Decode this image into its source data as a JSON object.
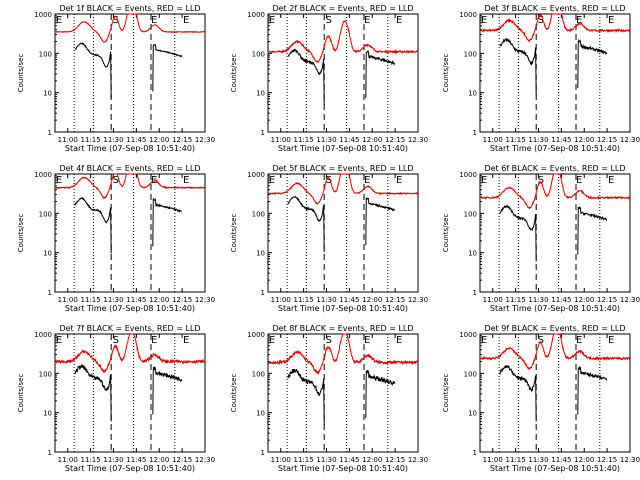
{
  "chart_data": {
    "type": "line",
    "xlabel": "Start Time (07-Sep-08 10:51:40)",
    "ylabel": "Counts/sec",
    "y_scale": "log",
    "ylim": [
      1,
      1000
    ],
    "x_ticks": [
      "11:00",
      "11:15",
      "11:30",
      "11:45",
      "12:00",
      "12:15",
      "12:30"
    ],
    "y_ticks": [
      "1",
      "10",
      "100",
      "1000"
    ],
    "markers": [
      "E",
      "S",
      "E",
      "E"
    ],
    "legend": "BLACK = Events, RED = LLD",
    "colors": {
      "events": "#000000",
      "lld": "#dd0000"
    },
    "panels": [
      {
        "title": "Det 1f BLACK = Events, RED = LLD",
        "red_base": 350,
        "black_base": 90,
        "noise": 0.02
      },
      {
        "title": "Det 2f BLACK = Events, RED = LLD",
        "red_base": 110,
        "black_base": 60,
        "noise": 0.05
      },
      {
        "title": "Det 3f BLACK = Events, RED = LLD",
        "red_base": 380,
        "black_base": 110,
        "noise": 0.05
      },
      {
        "title": "Det 4f BLACK = Events, RED = LLD",
        "red_base": 450,
        "black_base": 120,
        "noise": 0.03
      },
      {
        "title": "Det 5f BLACK = Events, RED = LLD",
        "red_base": 320,
        "black_base": 130,
        "noise": 0.03
      },
      {
        "title": "Det 6f BLACK = Events, RED = LLD",
        "red_base": 250,
        "black_base": 75,
        "noise": 0.04
      },
      {
        "title": "Det 7f BLACK = Events, RED = LLD",
        "red_base": 200,
        "black_base": 75,
        "noise": 0.08
      },
      {
        "title": "Det 8f BLACK = Events, RED = LLD",
        "red_base": 190,
        "black_base": 60,
        "noise": 0.08
      },
      {
        "title": "Det 9f BLACK = Events, RED = LLD",
        "red_base": 240,
        "black_base": 75,
        "noise": 0.06
      }
    ]
  }
}
